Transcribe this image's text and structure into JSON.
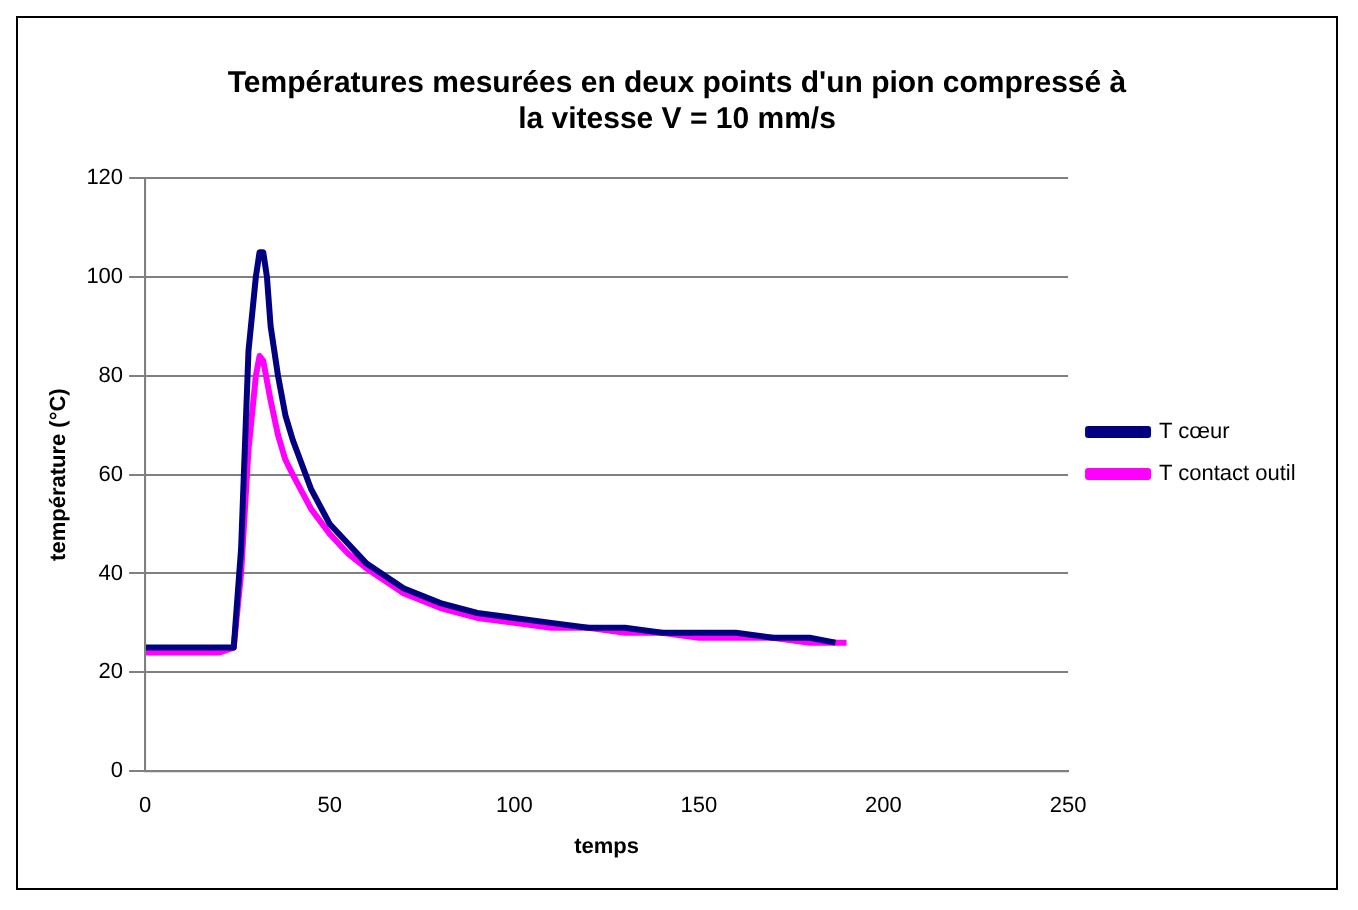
{
  "chart_data": {
    "type": "line",
    "title": [
      "Températures mesurées en deux points d'un pion compressé à",
      "la vitesse V = 10 mm/s"
    ],
    "xlabel": "temps",
    "ylabel": "température (°C)",
    "xlim": [
      0,
      250
    ],
    "xticks": [
      0,
      50,
      100,
      150,
      200,
      250
    ],
    "ylim": [
      0,
      120
    ],
    "yticks": [
      0,
      20,
      40,
      60,
      80,
      100,
      120
    ],
    "grid": "y",
    "legend": "right",
    "marker": "none",
    "line_style": "solid",
    "series": [
      {
        "name": "T cœur",
        "color": "#000080",
        "x": [
          0,
          5,
          10,
          15,
          20,
          24,
          26,
          28,
          30,
          31,
          32,
          33,
          34,
          36,
          38,
          40,
          45,
          50,
          55,
          60,
          70,
          80,
          90,
          100,
          110,
          120,
          130,
          140,
          150,
          160,
          170,
          180,
          187
        ],
        "values": [
          25,
          25,
          25,
          25,
          25,
          25,
          45,
          85,
          100,
          105,
          105,
          100,
          90,
          80,
          72,
          67,
          57,
          50,
          46,
          42,
          37,
          34,
          32,
          31,
          30,
          29,
          29,
          28,
          28,
          28,
          27,
          27,
          26
        ]
      },
      {
        "name": "T contact outil",
        "color": "#ff00ff",
        "x": [
          0,
          10,
          20,
          24,
          26,
          28,
          30,
          31,
          32,
          34,
          36,
          38,
          40,
          45,
          50,
          55,
          60,
          70,
          80,
          90,
          100,
          110,
          120,
          130,
          140,
          150,
          160,
          170,
          180,
          190
        ],
        "values": [
          24,
          24,
          24,
          25,
          40,
          65,
          80,
          84,
          83,
          75,
          68,
          63,
          60,
          53,
          48,
          44,
          41,
          36,
          33,
          31,
          30,
          29,
          29,
          28,
          28,
          27,
          27,
          27,
          26,
          26
        ]
      }
    ]
  }
}
